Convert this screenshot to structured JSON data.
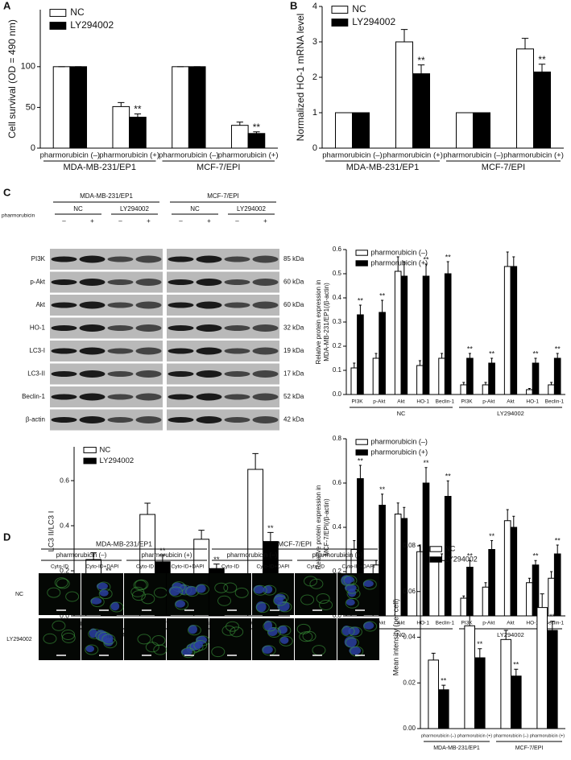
{
  "panel_labels": [
    "A",
    "B",
    "C",
    "D"
  ],
  "chart_data": [
    {
      "type": "bar",
      "ylabel": "Cell survival (OD = 490 nm)",
      "legend": "upper left",
      "categories": [
        "pharmorubicin (–)",
        "pharmorubicin (+)",
        "pharmorubicin (–)",
        "pharmorubicin (+)"
      ],
      "groups": [
        "MDA-MB-231/EP1",
        "MCF-7/EPI"
      ],
      "ylim": [
        0,
        170
      ],
      "yticks": [
        0,
        50,
        100
      ],
      "series": [
        {
          "name": "NC",
          "color": "#ffffff",
          "values": [
            100,
            51,
            100,
            28
          ],
          "errors": [
            0,
            5,
            0,
            4
          ],
          "annotations": [
            null,
            null,
            null,
            null
          ]
        },
        {
          "name": "LY294002",
          "color": "#000000",
          "values": [
            100,
            38,
            100,
            18
          ],
          "errors": [
            0,
            4,
            0,
            2
          ],
          "annotations": [
            null,
            "**",
            null,
            "**"
          ]
        }
      ]
    },
    {
      "type": "bar",
      "ylabel": "Normalized HO-1 mRNA level",
      "legend": "upper left",
      "categories": [
        "pharmorubicin (–)",
        "pharmorubicin (+)",
        "pharmorubicin (–)",
        "pharmorubicin (+)"
      ],
      "groups": [
        "MDA-MB-231/EP1",
        "MCF-7/EPI"
      ],
      "ylim": [
        0,
        4
      ],
      "yticks": [
        0,
        1,
        2,
        3,
        4
      ],
      "series": [
        {
          "name": "NC",
          "color": "#ffffff",
          "values": [
            1,
            3.0,
            1,
            2.8
          ],
          "errors": [
            0,
            0.35,
            0,
            0.3
          ],
          "annotations": [
            null,
            null,
            null,
            null
          ]
        },
        {
          "name": "LY294002",
          "color": "#000000",
          "values": [
            1,
            2.1,
            1,
            2.15
          ],
          "errors": [
            0,
            0.25,
            0,
            0.22
          ],
          "annotations": [
            null,
            "**",
            null,
            "**"
          ]
        }
      ]
    },
    {
      "type": "bar",
      "ylabel": [
        "Relative protein expression in",
        "MDA-MB-231/EP1(/β-actin)"
      ],
      "legend": "upper left",
      "categories": [
        "PI3K",
        "p-Akt",
        "Akt",
        "HO-1",
        "Beclin-1",
        "PI3K",
        "p-Akt",
        "Akt",
        "HO-1",
        "Beclin-1"
      ],
      "groups": [
        "NC",
        "LY294002"
      ],
      "ylim": [
        0,
        0.6
      ],
      "yticks": [
        {
          "value": 0,
          "label": "0.0"
        },
        0.1,
        0.2,
        0.3,
        0.4,
        0.5,
        0.6
      ],
      "series": [
        {
          "name": "pharmorubicin (–)",
          "color": "#ffffff",
          "values": [
            0.11,
            0.15,
            0.51,
            0.12,
            0.15,
            0.04,
            0.04,
            0.53,
            0.02,
            0.04
          ],
          "errors": [
            0.02,
            0.02,
            0.06,
            0.02,
            0.02,
            0.01,
            0.01,
            0.06,
            0.005,
            0.01
          ],
          "annotations": [
            null,
            null,
            null,
            null,
            null,
            null,
            null,
            null,
            null,
            null
          ]
        },
        {
          "name": "pharmorubicin (+)",
          "color": "#000000",
          "values": [
            0.33,
            0.34,
            0.49,
            0.49,
            0.5,
            0.15,
            0.13,
            0.53,
            0.13,
            0.15
          ],
          "errors": [
            0.04,
            0.05,
            0.06,
            0.05,
            0.05,
            0.02,
            0.02,
            0.04,
            0.02,
            0.02
          ],
          "annotations": [
            "**",
            "**",
            null,
            "**",
            "**",
            "**",
            "**",
            null,
            "**",
            "**"
          ]
        }
      ]
    },
    {
      "type": "bar",
      "ylabel": "LC3 II/LC3 I",
      "legend": "upper left",
      "categories": [
        "pharmorubicin (–)",
        "pharmorubicin (+)",
        "pharmorubicin (–)",
        "pharmorubicin (+)"
      ],
      "groups": [
        "MDA-MB-231/EP1",
        "MCF-7/EPI"
      ],
      "ylim": [
        0,
        0.75
      ],
      "yticks": [
        {
          "value": 0,
          "label": "0.0"
        },
        0.2,
        0.4,
        0.6
      ],
      "series": [
        {
          "name": "NC",
          "color": "#ffffff",
          "values": [
            0.25,
            0.45,
            0.34,
            0.65
          ],
          "errors": [
            0.03,
            0.05,
            0.04,
            0.07
          ],
          "annotations": [
            null,
            null,
            null,
            null
          ]
        },
        {
          "name": "LY294002",
          "color": "#000000",
          "values": [
            0.16,
            0.24,
            0.21,
            0.33
          ],
          "errors": [
            0.02,
            0.03,
            0.02,
            0.04
          ],
          "annotations": [
            "**",
            "**",
            "**",
            "**"
          ]
        }
      ]
    },
    {
      "type": "bar",
      "ylabel": [
        "Relative protein expression in",
        "MCF-7/EPI(/β-actin)"
      ],
      "legend": "upper left",
      "categories": [
        "PI3K",
        "p-Akt",
        "Akt",
        "HO-1",
        "Beclin-1",
        "PI3K",
        "p-Akt",
        "Akt",
        "HO-1",
        "Beclin-1"
      ],
      "groups": [
        "NC",
        "LY294002"
      ],
      "ylim": [
        0,
        0.8
      ],
      "yticks": [
        {
          "value": 0,
          "label": "0.0"
        },
        0.2,
        0.4,
        0.6,
        0.8
      ],
      "series": [
        {
          "name": "pharmorubicin (–)",
          "color": "#ffffff",
          "values": [
            0.3,
            0.23,
            0.46,
            0.29,
            0.25,
            0.08,
            0.13,
            0.43,
            0.15,
            0.17
          ],
          "errors": [
            0.04,
            0.02,
            0.05,
            0.03,
            0.03,
            0.01,
            0.02,
            0.05,
            0.02,
            0.03
          ],
          "annotations": [
            null,
            null,
            null,
            null,
            null,
            null,
            null,
            null,
            null,
            null
          ]
        },
        {
          "name": "pharmorubicin (+)",
          "color": "#000000",
          "values": [
            0.62,
            0.5,
            0.44,
            0.6,
            0.54,
            0.22,
            0.3,
            0.4,
            0.23,
            0.28
          ],
          "errors": [
            0.06,
            0.05,
            0.05,
            0.07,
            0.07,
            0.03,
            0.04,
            0.05,
            0.02,
            0.04
          ],
          "annotations": [
            "**",
            "**",
            null,
            "**",
            "**",
            "**",
            "**",
            null,
            "**",
            "**"
          ]
        }
      ]
    },
    {
      "type": "bar",
      "ylabel": "Mean intensity (per cell)",
      "legend": "upper left",
      "categories": [
        "pharmorubicin (–)",
        "pharmorubicin (+)",
        "pharmorubicin (–)",
        "pharmorubicin (+)"
      ],
      "groups": [
        "MDA-MB-231/EP1",
        "MCF-7/EPI"
      ],
      "ylim": [
        0,
        0.08
      ],
      "yticks": [
        {
          "value": 0,
          "label": "0.00"
        },
        0.02,
        0.04,
        0.06,
        0.08
      ],
      "series": [
        {
          "name": "NC",
          "color": "#ffffff",
          "values": [
            0.03,
            0.045,
            0.039,
            0.053
          ],
          "errors": [
            0.003,
            0.005,
            0.004,
            0.006
          ],
          "annotations": [
            null,
            null,
            null,
            null
          ]
        },
        {
          "name": "LY294002",
          "color": "#000000",
          "values": [
            0.017,
            0.031,
            0.023,
            0.043
          ],
          "errors": [
            0.002,
            0.004,
            0.003,
            0.004
          ],
          "annotations": [
            "**",
            "**",
            "**",
            "**"
          ]
        }
      ]
    }
  ],
  "blot": {
    "treatment_label": "pharmorubicin",
    "groups": [
      {
        "label": "MDA-MB-231/EP1",
        "conditions": [
          "NC",
          "LY294002"
        ],
        "lanes": [
          "–",
          "+",
          "–",
          "+"
        ]
      },
      {
        "label": "MCF-7/EPI",
        "conditions": [
          "NC",
          "LY294002"
        ],
        "lanes": [
          "–",
          "+",
          "–",
          "+"
        ]
      }
    ],
    "rows": [
      {
        "protein": "PI3K",
        "size": "85 kDa"
      },
      {
        "protein": "p-Akt",
        "size": "60 kDa"
      },
      {
        "protein": "Akt",
        "size": "60 kDa"
      },
      {
        "protein": "HO-1",
        "size": "32 kDa"
      },
      {
        "protein": "LC3-I",
        "size": "19 kDa"
      },
      {
        "protein": "LC3-II",
        "size": "17 kDa"
      },
      {
        "protein": "Beclin-1",
        "size": "52 kDa"
      },
      {
        "protein": "β-actin",
        "size": "42 kDa"
      }
    ]
  },
  "microscopy": {
    "groups": [
      {
        "label": "MDA-MB-231/EP1",
        "treatments": [
          {
            "label": "pharmorubicin (–)",
            "channels": [
              "Cyto-ID",
              "Cyto-ID+DAPI"
            ]
          },
          {
            "label": "pharmorubicin (+)",
            "channels": [
              "Cyto-ID",
              "Cyto-ID+DAPI"
            ]
          }
        ]
      },
      {
        "label": "MCF-7/EPI",
        "treatments": [
          {
            "label": "pharmorubicin (–)",
            "channels": [
              "Cyto-ID",
              "Cyto-ID+DAPI"
            ]
          },
          {
            "label": "pharmorubicin (+)",
            "channels": [
              "Cyto-ID",
              "Cyto-ID+DAPI"
            ]
          }
        ]
      }
    ],
    "rows": [
      "NC",
      "LY294002"
    ]
  }
}
